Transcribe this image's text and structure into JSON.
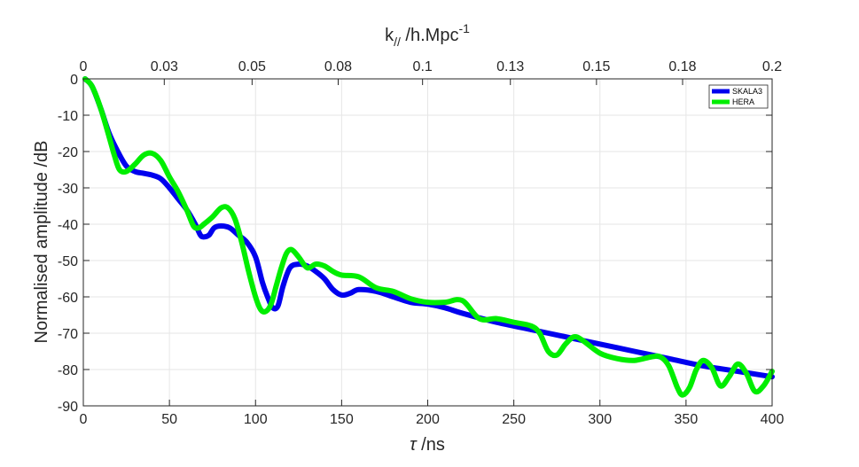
{
  "chart_data": {
    "type": "line",
    "xlabel": "τ /ns",
    "xlabel_symbol": "τ",
    "xlabel_unit": " /ns",
    "ylabel": "Normalised amplitude /dB",
    "top_xlabel": "k// /h.Mpc-1",
    "top_xlabel_main": "k",
    "top_xlabel_sub": "//",
    "top_xlabel_unit": " /h.Mpc",
    "top_xlabel_sup": "-1",
    "xlim": [
      0,
      400
    ],
    "ylim": [
      -90,
      0
    ],
    "x_ticks": [
      0,
      50,
      100,
      150,
      200,
      250,
      300,
      350,
      400
    ],
    "y_ticks": [
      0,
      -10,
      -20,
      -30,
      -40,
      -50,
      -60,
      -70,
      -80,
      -90
    ],
    "top_ticks": [
      {
        "label": "0",
        "x": 0
      },
      {
        "label": "0.03",
        "x": 47
      },
      {
        "label": "0.05",
        "x": 98
      },
      {
        "label": "0.08",
        "x": 148
      },
      {
        "label": "0.1",
        "x": 197
      },
      {
        "label": "0.13",
        "x": 248
      },
      {
        "label": "0.15",
        "x": 298
      },
      {
        "label": "0.18",
        "x": 348
      },
      {
        "label": "0.2",
        "x": 400
      }
    ],
    "grid": true,
    "legend_position": "top-right",
    "series": [
      {
        "name": "SKALA3",
        "color": "#0000ee",
        "x": [
          1,
          5,
          10,
          15,
          20,
          25,
          30,
          35,
          40,
          45,
          50,
          55,
          60,
          65,
          68,
          70,
          73,
          76,
          80,
          85,
          90,
          95,
          100,
          104,
          107,
          110,
          113,
          116,
          120,
          125,
          130,
          135,
          140,
          145,
          150,
          155,
          160,
          170,
          180,
          190,
          200,
          210,
          220,
          240,
          260,
          280,
          300,
          320,
          340,
          360,
          380,
          400
        ],
        "y": [
          0,
          -2,
          -8,
          -15,
          -20,
          -24,
          -25.5,
          -26,
          -26.5,
          -27.5,
          -30,
          -33,
          -36,
          -40,
          -43,
          -43.5,
          -43,
          -41,
          -40.5,
          -41,
          -43,
          -45,
          -49,
          -56,
          -60,
          -63,
          -62.5,
          -57,
          -52,
          -51,
          -51.5,
          -53,
          -55,
          -58,
          -59.5,
          -59,
          -58,
          -58.5,
          -60,
          -61.5,
          -62,
          -63,
          -64.5,
          -67,
          -69,
          -71,
          -73,
          -75,
          -77,
          -79,
          -80.5,
          -82
        ]
      },
      {
        "name": "HERA",
        "color": "#00ee00",
        "x": [
          1,
          5,
          10,
          15,
          18,
          21,
          25,
          30,
          35,
          40,
          45,
          50,
          55,
          60,
          64,
          67,
          70,
          75,
          80,
          84,
          88,
          92,
          96,
          100,
          103,
          106,
          109,
          112,
          115,
          118,
          121,
          125,
          130,
          135,
          140,
          145,
          150,
          160,
          170,
          180,
          190,
          200,
          210,
          220,
          230,
          240,
          250,
          260,
          265,
          270,
          275,
          280,
          285,
          290,
          300,
          310,
          320,
          330,
          335,
          340,
          345,
          348,
          352,
          356,
          360,
          365,
          370,
          375,
          380,
          385,
          390,
          395,
          400
        ],
        "y": [
          0,
          -2,
          -8,
          -16,
          -21,
          -25,
          -25.5,
          -23.5,
          -21,
          -20.5,
          -22.5,
          -27,
          -31,
          -36,
          -40.5,
          -41,
          -40,
          -38,
          -35.5,
          -35.5,
          -38.5,
          -45,
          -53,
          -60,
          -63.5,
          -64,
          -62,
          -57,
          -52,
          -48,
          -47,
          -49,
          -52,
          -51,
          -51.5,
          -53,
          -54,
          -54.5,
          -57.5,
          -58.5,
          -60.5,
          -61.5,
          -61.5,
          -61,
          -66,
          -66,
          -67,
          -68,
          -70,
          -75,
          -76,
          -73,
          -71,
          -72,
          -75.5,
          -77,
          -77.5,
          -76.5,
          -76.5,
          -79,
          -85,
          -87,
          -85,
          -80,
          -77.5,
          -79.5,
          -84.5,
          -82,
          -78.5,
          -81,
          -86,
          -84.5,
          -80.5
        ]
      }
    ]
  }
}
